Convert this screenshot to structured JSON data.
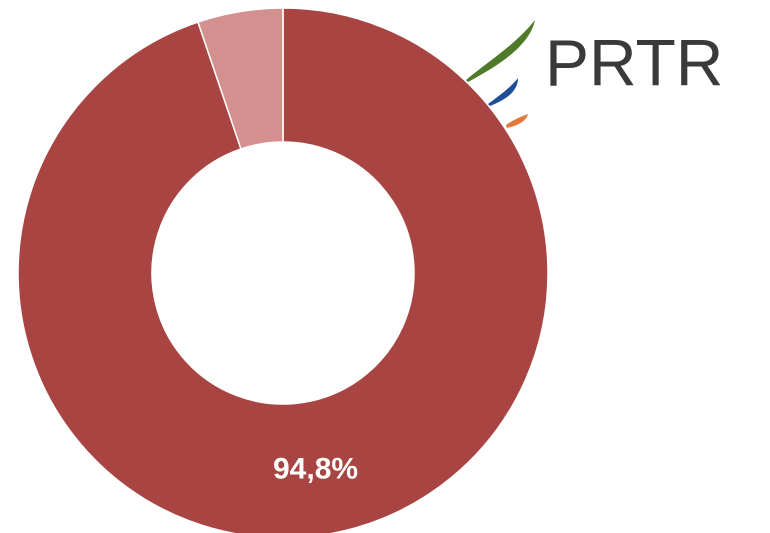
{
  "chart_data": {
    "type": "donut",
    "values": [
      94.8,
      5.2
    ],
    "value_labels": [
      "94,8%",
      null
    ],
    "colors": [
      "#a84543",
      "#d4908e"
    ]
  },
  "logo": {
    "text": "PRTR"
  }
}
